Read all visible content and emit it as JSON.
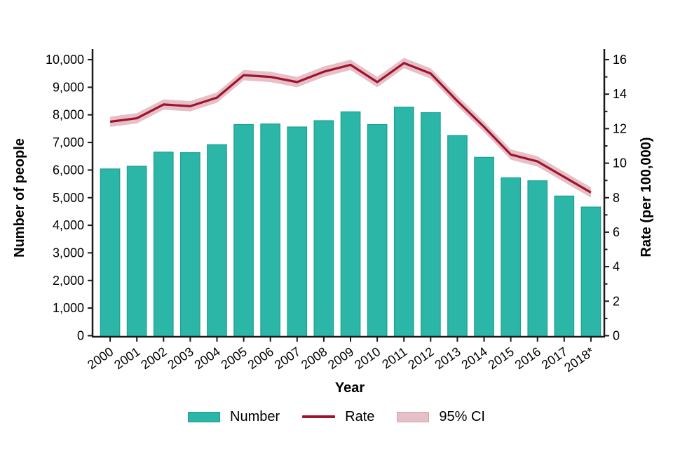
{
  "chart_data": {
    "type": "bar",
    "title": "",
    "categories": [
      "2000",
      "2001",
      "2002",
      "2003",
      "2004",
      "2005",
      "2006",
      "2007",
      "2008",
      "2009",
      "2010",
      "2011",
      "2012",
      "2013",
      "2014",
      "2015",
      "2016",
      "2017",
      "2018*"
    ],
    "series": [
      {
        "name": "Number",
        "type": "bar",
        "axis": "left",
        "values": [
          6040,
          6140,
          6650,
          6630,
          6920,
          7650,
          7670,
          7560,
          7790,
          8110,
          7650,
          8280,
          8080,
          7250,
          6460,
          5720,
          5610,
          5060,
          4660
        ]
      },
      {
        "name": "Rate",
        "type": "line",
        "axis": "right",
        "values": [
          12.4,
          12.6,
          13.4,
          13.3,
          13.8,
          15.1,
          15.0,
          14.7,
          15.3,
          15.7,
          14.7,
          15.8,
          15.2,
          13.6,
          12.1,
          10.5,
          10.1,
          9.2,
          8.3
        ]
      },
      {
        "name": "95% CI",
        "type": "band",
        "axis": "right",
        "half_width": 0.3
      }
    ],
    "left_axis": {
      "label": "Number of people",
      "min": 0,
      "max": 10000,
      "tick_step": 1000,
      "tick_labels": [
        "0",
        "1,000",
        "2,000",
        "3,000",
        "4,000",
        "5,000",
        "6,000",
        "7,000",
        "8,000",
        "9,000",
        "10,000"
      ]
    },
    "right_axis": {
      "label": "Rate (per 100,000)",
      "min": 0,
      "max": 16,
      "tick_step": 2,
      "minor_tick_step": 1,
      "tick_labels": [
        "0",
        "2",
        "4",
        "6",
        "8",
        "10",
        "12",
        "14",
        "16"
      ]
    },
    "x_axis": {
      "label": "Year"
    },
    "legend": [
      "Number",
      "Rate",
      "95% CI"
    ],
    "layout": {
      "grid": false,
      "legend_position": "bottom"
    },
    "colors": {
      "bar_fill": "#2bb6a7",
      "bar_border": "#1ba092",
      "rate_line": "#a2122e",
      "ci_band": "#e5c0c7",
      "axis": "#1a1a1a",
      "text": "#000000"
    }
  }
}
